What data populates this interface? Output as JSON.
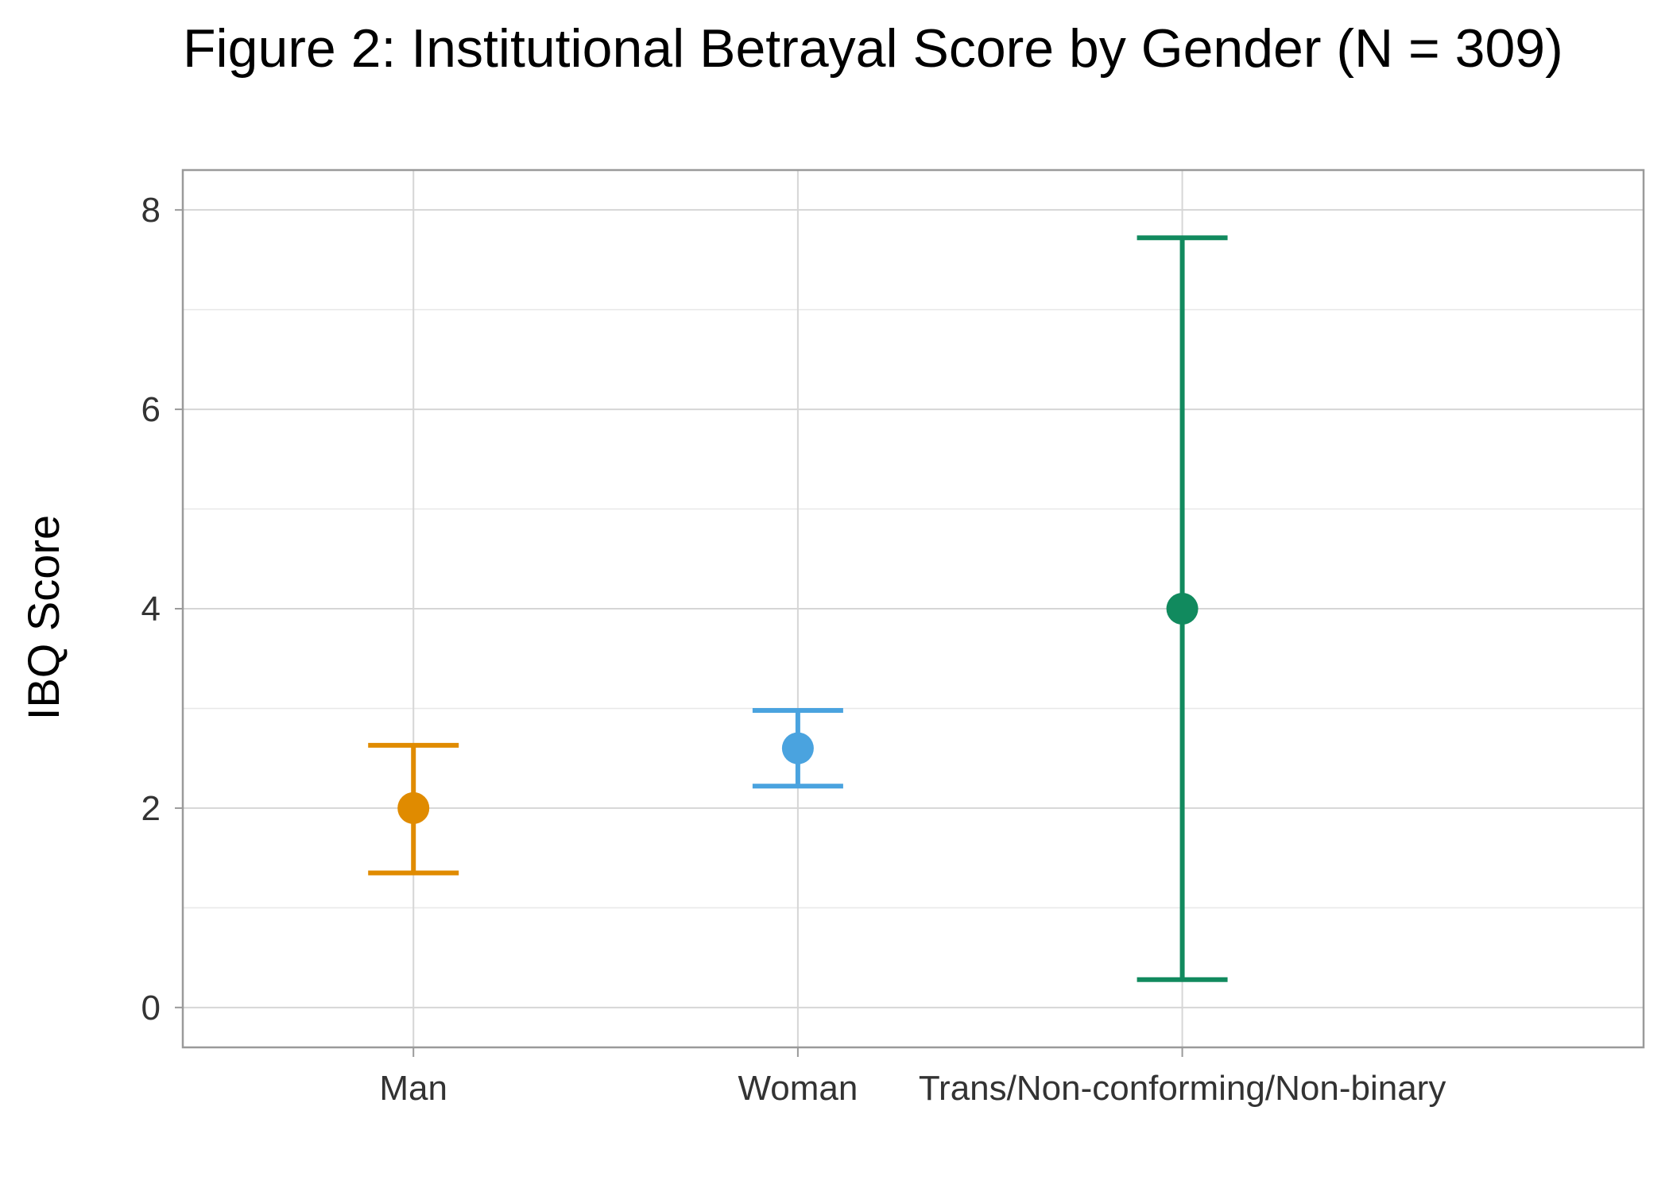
{
  "chart_data": {
    "type": "scatter",
    "subtype": "point-with-error-bars",
    "title": "Figure 2: Institutional Betrayal Score by Gender (N = 309)",
    "xlabel": "",
    "ylabel": "IBQ Score",
    "ylim": [
      -0.4,
      8.4
    ],
    "yticks": [
      0,
      2,
      4,
      6,
      8
    ],
    "grid": true,
    "legend": "none",
    "categories": [
      "Man",
      "Woman",
      "Trans/Non-conforming/Non-binary"
    ],
    "series": [
      {
        "category": "Man",
        "mean": 2.0,
        "ci_lower": 1.35,
        "ci_upper": 2.63,
        "color": "#E08B00"
      },
      {
        "category": "Woman",
        "mean": 2.6,
        "ci_lower": 2.22,
        "ci_upper": 2.98,
        "color": "#4AA3DF"
      },
      {
        "category": "Trans/Non-conforming/Non-binary",
        "mean": 4.0,
        "ci_lower": 0.28,
        "ci_upper": 7.72,
        "color": "#118A5E"
      }
    ],
    "colors": {
      "panel_border": "#9a9a9a",
      "grid_major": "#d6d6d6",
      "grid_minor": "#e8e8e8",
      "tick_text": "#333333",
      "title_text": "#000000"
    }
  }
}
